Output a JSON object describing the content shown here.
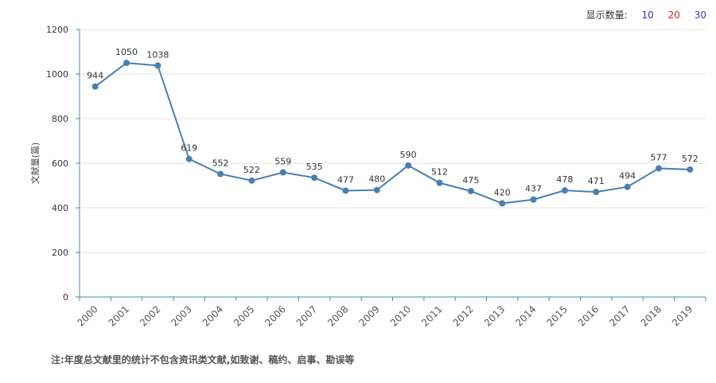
{
  "display_count": {
    "label": "显示数量:",
    "options": [
      {
        "text": "10",
        "color": "#3333bb"
      },
      {
        "text": "20",
        "color": "#e02020"
      },
      {
        "text": "30",
        "color": "#3333bb"
      }
    ]
  },
  "colors": {
    "line": "#4a7fb0",
    "axis": "#3a8fa8",
    "grid": "#e2e2e2",
    "tick_text": "#555555"
  },
  "chart_data": {
    "type": "line",
    "title": "",
    "xlabel": "",
    "ylabel": "文献量(篇)",
    "ylim": [
      0,
      1200
    ],
    "yticks": [
      0,
      200,
      400,
      600,
      800,
      1000,
      1200
    ],
    "grid": true,
    "categories": [
      "2000",
      "2001",
      "2002",
      "2003",
      "2004",
      "2005",
      "2006",
      "2007",
      "2008",
      "2009",
      "2010",
      "2011",
      "2012",
      "2013",
      "2014",
      "2015",
      "2016",
      "2017",
      "2018",
      "2019"
    ],
    "series": [
      {
        "values": [
          944,
          1050,
          1038,
          619,
          552,
          522,
          559,
          535,
          477,
          480,
          590,
          512,
          475,
          420,
          437,
          478,
          471,
          494,
          577,
          572
        ]
      }
    ]
  },
  "note": "注:年度总文献里的统计不包含资讯类文献,如致谢、稿约、启事、勘误等"
}
